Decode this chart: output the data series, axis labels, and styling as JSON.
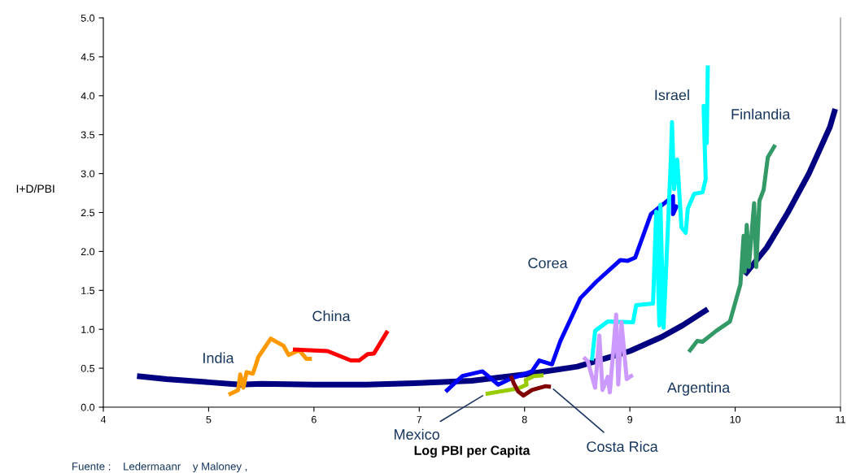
{
  "chart_data": {
    "type": "line",
    "xlabel": "Log PBI per Capita",
    "ylabel": "I+D/PBI",
    "xlim": [
      4,
      11
    ],
    "xticks": [
      4,
      5,
      6,
      7,
      8,
      9,
      10,
      11
    ],
    "ylim": [
      0,
      5
    ],
    "yticks": [
      {
        "value": 0,
        "label": "0.0"
      },
      {
        "value": 0.5,
        "label": "0.5"
      },
      {
        "value": 1,
        "label": "1.0"
      },
      {
        "value": 1.5,
        "label": "1.5"
      },
      {
        "value": 2,
        "label": "2.0"
      },
      {
        "value": 2.5,
        "label": "2.5"
      },
      {
        "value": 3,
        "label": "3.0"
      },
      {
        "value": 3.5,
        "label": "3.5"
      },
      {
        "value": 4,
        "label": "4.0"
      },
      {
        "value": 4.5,
        "label": "4.5"
      },
      {
        "value": 5,
        "label": "5.0"
      }
    ],
    "grid": false,
    "marker": "none",
    "line_style": "solid",
    "series": [
      {
        "color": "#000080",
        "x": [
          4.32,
          4.6,
          5.0,
          5.3,
          5.5,
          6.0,
          6.5,
          7.0,
          7.5,
          8.0,
          8.5,
          9.0,
          9.3,
          9.5,
          9.74,
          null,
          10.09,
          10.3,
          10.5,
          10.7,
          10.9,
          10.95
        ],
        "values": [
          0.4,
          0.36,
          0.32,
          0.29,
          0.3,
          0.29,
          0.29,
          0.31,
          0.34,
          0.42,
          0.52,
          0.72,
          0.9,
          1.05,
          1.26,
          null,
          1.7,
          2.05,
          2.5,
          3.0,
          3.6,
          3.83
        ]
      },
      {
        "color": "#ff9900",
        "x": [
          5.19,
          5.28,
          5.3,
          5.33,
          5.36,
          5.42,
          5.45,
          5.47,
          5.51,
          5.59,
          5.71,
          5.76,
          5.86,
          5.93,
          5.98
        ],
        "values": [
          0.16,
          0.22,
          0.42,
          0.25,
          0.45,
          0.43,
          0.55,
          0.64,
          0.72,
          0.88,
          0.79,
          0.67,
          0.73,
          0.62,
          0.62
        ]
      },
      {
        "color": "#ff0000",
        "x": [
          5.8,
          6.13,
          6.35,
          6.43,
          6.51,
          6.57,
          6.7
        ],
        "values": [
          0.74,
          0.72,
          0.6,
          0.6,
          0.68,
          0.69,
          0.98
        ]
      },
      {
        "color": "#0000ff",
        "x": [
          7.25,
          7.41,
          7.6,
          7.75,
          7.86,
          8.07,
          8.14,
          8.26,
          8.34,
          8.53,
          8.68,
          8.91,
          8.98,
          9.05,
          9.2,
          9.41,
          9.41,
          9.45
        ],
        "values": [
          0.2,
          0.4,
          0.46,
          0.29,
          0.36,
          0.46,
          0.6,
          0.55,
          0.85,
          1.4,
          1.61,
          1.89,
          1.88,
          1.92,
          2.48,
          2.71,
          2.48,
          2.6
        ]
      },
      {
        "color": "#00ffff",
        "x": [
          8.64,
          8.67,
          8.79,
          9.03,
          9.06,
          9.22,
          9.25,
          9.28,
          9.29,
          9.32,
          9.39,
          9.4,
          9.42,
          9.45,
          9.49,
          9.53,
          9.55,
          9.61,
          9.69,
          9.72,
          9.7,
          9.73,
          9.74
        ],
        "values": [
          0.6,
          0.98,
          1.1,
          1.09,
          1.31,
          1.33,
          2.51,
          1.05,
          2.6,
          1.02,
          3.21,
          3.66,
          2.8,
          3.18,
          2.31,
          2.24,
          2.55,
          2.74,
          2.76,
          2.93,
          3.87,
          3.39,
          4.39
        ]
      },
      {
        "color": "#339966",
        "x": [
          9.56,
          9.64,
          9.69,
          9.82,
          9.95,
          10.05,
          10.08,
          10.09,
          10.11,
          10.13,
          10.18,
          10.2,
          10.23,
          10.27,
          10.31,
          10.38
        ],
        "values": [
          0.71,
          0.85,
          0.84,
          0.98,
          1.1,
          1.58,
          2.2,
          1.74,
          2.34,
          1.8,
          2.62,
          1.8,
          2.65,
          2.79,
          3.21,
          3.37
        ]
      },
      {
        "color": "#cc99ff",
        "x": [
          8.56,
          8.6,
          8.67,
          8.71,
          8.74,
          8.79,
          8.81,
          8.87,
          8.89,
          8.92,
          8.97,
          9.01,
          9.03
        ],
        "values": [
          0.64,
          0.59,
          0.25,
          0.92,
          0.22,
          0.39,
          0.19,
          1.19,
          0.29,
          1.09,
          0.36,
          0.4,
          0.41
        ]
      },
      {
        "color": "#99cc00",
        "x": [
          7.63,
          7.76,
          7.94,
          8.02,
          8.01,
          8.09,
          8.18
        ],
        "values": [
          0.17,
          0.2,
          0.24,
          0.29,
          0.35,
          0.4,
          0.41
        ]
      },
      {
        "color": "#800000",
        "x": [
          7.87,
          7.9,
          7.94,
          7.99,
          8.07,
          8.2,
          8.25
        ],
        "values": [
          0.4,
          0.3,
          0.2,
          0.15,
          0.22,
          0.27,
          0.26
        ]
      }
    ],
    "annotations": [
      "India",
      {
        "text": "China",
        "x": 6.7,
        "y": 0.98
      },
      {
        "text": "Corea",
        "x": 8.53,
        "y": 1.4
      },
      {
        "text": "Israel",
        "x": 9.4,
        "y": 3.66
      },
      {
        "text": "Finlandia",
        "x": 10.38,
        "y": 3.37
      },
      {
        "text": "Argentina",
        "x": 9.03,
        "y": 0.41
      },
      {
        "text": "Mexico",
        "x": 7.63,
        "y": 0.17
      },
      {
        "text": "Costa Rica",
        "x": 8.25,
        "y": 0.26
      },
      "Fuente :    Ledermaanr    y Maloney ,"
    ]
  }
}
